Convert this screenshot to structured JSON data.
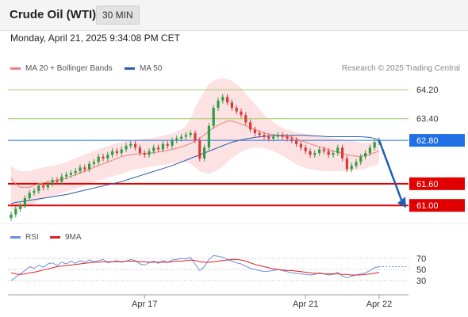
{
  "header": {
    "instrument": "Crude Oil (WTI)",
    "timeframe": "30 MIN"
  },
  "timestamp": "Monday, April 21, 2025 9:34:08 PM CET",
  "legend": {
    "bollinger": {
      "label": "MA 20 + Bollinger Bands",
      "color": "#f08080"
    },
    "ma50": {
      "label": "MA 50",
      "color": "#2a5caa"
    },
    "credit": "Research © 2025 Trading Central"
  },
  "rsi_legend": {
    "rsi": {
      "label": "RSI",
      "color": "#6b8fd6"
    },
    "ma9": {
      "label": "9MA",
      "color": "#e02020"
    }
  },
  "chart_data": [
    {
      "type": "candlestick",
      "ylim": [
        60.5,
        64.6
      ],
      "x_ticks": [
        "Apr 17",
        "Apr 21",
        "Apr 22"
      ],
      "levels": [
        {
          "value": 64.2,
          "label": "64.20",
          "kind": "resistance",
          "color": "#9ccc65"
        },
        {
          "value": 63.4,
          "label": "63.40",
          "kind": "resistance",
          "color": "#9ccc65"
        },
        {
          "value": 62.8,
          "label": "62.80",
          "kind": "last",
          "color": "#1f6fe5"
        },
        {
          "value": 61.6,
          "label": "61.60",
          "kind": "support",
          "color": "#e00000"
        },
        {
          "value": 61.0,
          "label": "61.00",
          "kind": "support",
          "color": "#e00000"
        }
      ],
      "close": [
        60.75,
        60.9,
        61.0,
        61.2,
        61.35,
        61.4,
        61.55,
        61.5,
        61.6,
        61.7,
        61.65,
        61.8,
        61.85,
        61.9,
        61.95,
        62.05,
        62.0,
        62.15,
        62.2,
        62.35,
        62.3,
        62.4,
        62.5,
        62.45,
        62.55,
        62.65,
        62.7,
        62.6,
        62.45,
        62.4,
        62.5,
        62.6,
        62.55,
        62.7,
        62.65,
        62.8,
        62.85,
        62.9,
        62.95,
        63.0,
        62.8,
        62.3,
        62.6,
        63.2,
        63.7,
        63.9,
        64.0,
        63.85,
        63.7,
        63.6,
        63.5,
        63.3,
        63.1,
        63.0,
        62.95,
        62.9,
        62.85,
        62.9,
        62.95,
        62.9,
        62.85,
        62.8,
        62.7,
        62.6,
        62.5,
        62.4,
        62.45,
        62.55,
        62.5,
        62.4,
        62.45,
        62.6,
        62.3,
        62.0,
        62.1,
        62.2,
        62.35,
        62.45,
        62.6,
        62.75,
        62.8
      ],
      "ma20": [
        61.75,
        61.6,
        61.5,
        61.5,
        61.5,
        61.55,
        61.6,
        61.62,
        61.65,
        61.68,
        61.7,
        61.72,
        61.75,
        61.8,
        61.85,
        61.9,
        61.95,
        62.0,
        62.05,
        62.1,
        62.15,
        62.2,
        62.25,
        62.3,
        62.35,
        62.38,
        62.4,
        62.42,
        62.43,
        62.44,
        62.45,
        62.46,
        62.48,
        62.5,
        62.52,
        62.55,
        62.58,
        62.62,
        62.66,
        62.72,
        62.78,
        62.86,
        62.95,
        63.05,
        63.15,
        63.22,
        63.28,
        63.33,
        63.33,
        63.3,
        63.25,
        63.2,
        63.15,
        63.1,
        63.05,
        63.0,
        62.98,
        62.96,
        62.94,
        62.92,
        62.9,
        62.88,
        62.85,
        62.8,
        62.75,
        62.7,
        62.66,
        62.62,
        62.58,
        62.54,
        62.5,
        62.48,
        62.44,
        62.4,
        62.38,
        62.36,
        62.36,
        62.38,
        62.42,
        62.46,
        62.5
      ],
      "bb_upper": [
        62.1,
        62.0,
        61.95,
        61.95,
        61.95,
        62.0,
        62.02,
        62.05,
        62.08,
        62.1,
        62.12,
        62.15,
        62.2,
        62.25,
        62.3,
        62.36,
        62.4,
        62.45,
        62.5,
        62.55,
        62.6,
        62.64,
        62.68,
        62.72,
        62.76,
        62.78,
        62.8,
        62.82,
        62.83,
        62.84,
        62.85,
        62.87,
        62.9,
        62.93,
        62.96,
        63.0,
        63.05,
        63.1,
        63.2,
        63.4,
        63.7,
        63.95,
        64.15,
        64.35,
        64.45,
        64.5,
        64.52,
        64.5,
        64.45,
        64.35,
        64.25,
        64.1,
        63.95,
        63.8,
        63.65,
        63.5,
        63.4,
        63.3,
        63.22,
        63.15,
        63.1,
        63.06,
        63.02,
        63.0,
        62.98,
        62.96,
        62.94,
        62.92,
        62.9,
        62.88,
        62.86,
        62.84,
        62.82,
        62.8,
        62.78,
        62.76,
        62.74,
        62.73,
        62.74,
        62.76,
        62.8
      ],
      "bb_lower": [
        60.9,
        60.85,
        60.9,
        60.95,
        61.0,
        61.05,
        61.12,
        61.18,
        61.22,
        61.26,
        61.3,
        61.34,
        61.38,
        61.42,
        61.46,
        61.5,
        61.55,
        61.6,
        61.64,
        61.68,
        61.72,
        61.76,
        61.8,
        61.84,
        61.88,
        61.92,
        61.96,
        62.0,
        62.02,
        62.04,
        62.06,
        62.08,
        62.1,
        62.12,
        62.14,
        62.16,
        62.18,
        62.2,
        62.2,
        62.15,
        62.05,
        61.95,
        61.9,
        61.88,
        61.92,
        61.98,
        62.08,
        62.2,
        62.3,
        62.4,
        62.48,
        62.54,
        62.58,
        62.6,
        62.6,
        62.58,
        62.55,
        62.5,
        62.44,
        62.38,
        62.3,
        62.22,
        62.14,
        62.08,
        62.04,
        62.0,
        61.98,
        61.96,
        61.95,
        61.94,
        61.94,
        61.94,
        61.95,
        61.96,
        61.97,
        61.98,
        62.0,
        62.02,
        62.06,
        62.1,
        62.15
      ],
      "ma50": [
        61.05,
        61.08,
        61.1,
        61.12,
        61.14,
        61.16,
        61.18,
        61.2,
        61.22,
        61.24,
        61.26,
        61.28,
        61.3,
        61.33,
        61.36,
        61.39,
        61.42,
        61.45,
        61.48,
        61.51,
        61.54,
        61.57,
        61.6,
        61.63,
        61.66,
        61.7,
        61.74,
        61.78,
        61.82,
        61.86,
        61.9,
        61.94,
        61.98,
        62.02,
        62.06,
        62.1,
        62.15,
        62.2,
        62.25,
        62.3,
        62.35,
        62.4,
        62.45,
        62.5,
        62.55,
        62.6,
        62.65,
        62.7,
        62.75,
        62.78,
        62.81,
        62.84,
        62.86,
        62.88,
        62.9,
        62.91,
        62.92,
        62.93,
        62.94,
        62.94,
        62.94,
        62.94,
        62.94,
        62.94,
        62.94,
        62.93,
        62.92,
        62.92,
        62.91,
        62.9,
        62.9,
        62.9,
        62.9,
        62.9,
        62.9,
        62.9,
        62.9,
        62.89,
        62.88,
        62.85,
        62.82
      ]
    },
    {
      "type": "line",
      "ylim": [
        10,
        90
      ],
      "y_ticks": [
        70,
        50,
        30
      ],
      "series": [
        {
          "name": "RSI",
          "values": [
            30,
            36,
            42,
            48,
            55,
            52,
            58,
            54,
            60,
            62,
            57,
            63,
            60,
            65,
            61,
            66,
            63,
            67,
            64,
            66,
            68,
            62,
            64,
            66,
            63,
            65,
            68,
            66,
            60,
            58,
            62,
            65,
            61,
            66,
            63,
            67,
            68,
            70,
            69,
            72,
            60,
            48,
            55,
            68,
            75,
            74,
            72,
            68,
            65,
            62,
            60,
            56,
            52,
            50,
            48,
            46,
            47,
            48,
            50,
            48,
            46,
            44,
            43,
            42,
            41,
            40,
            41,
            44,
            42,
            40,
            41,
            45,
            38,
            35,
            38,
            40,
            42,
            44,
            48,
            53,
            55
          ]
        },
        {
          "name": "9MA",
          "values": [
            44,
            42,
            41,
            42,
            44,
            45,
            47,
            49,
            51,
            53,
            55,
            56,
            57,
            58,
            59,
            60,
            61,
            62,
            63,
            63,
            64,
            64,
            64,
            64,
            64,
            65,
            65,
            65,
            64,
            64,
            63,
            63,
            63,
            63,
            63,
            64,
            65,
            65,
            66,
            67,
            66,
            64,
            63,
            63,
            64,
            65,
            66,
            67,
            68,
            68,
            67,
            65,
            62,
            59,
            57,
            55,
            53,
            51,
            50,
            49,
            48,
            48,
            47,
            46,
            45,
            44,
            43,
            43,
            42,
            42,
            42,
            42,
            41,
            41,
            40,
            40,
            40,
            41,
            42,
            43,
            45
          ]
        }
      ]
    }
  ]
}
